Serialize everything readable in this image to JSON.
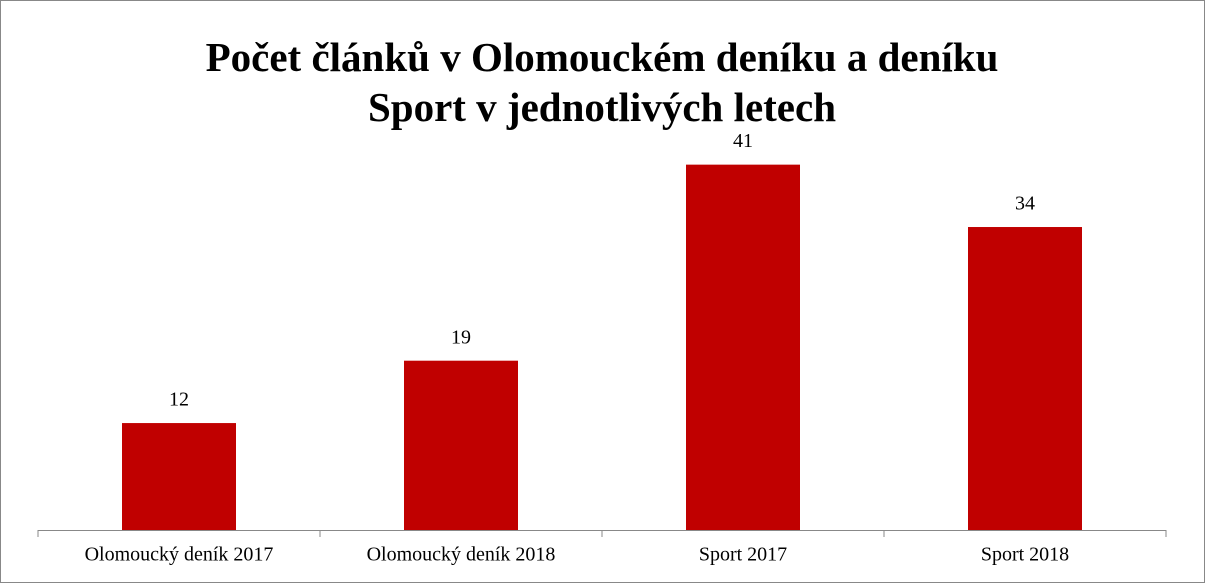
{
  "chart_data": {
    "type": "bar",
    "title": "Počet článků v Olomouckém deníku a deníku Sport v jednotlivých letech",
    "categories": [
      "Olomoucký deník 2017",
      "Olomoucký deník 2018",
      "Sport 2017",
      "Sport 2018"
    ],
    "values": [
      12,
      19,
      41,
      34
    ],
    "color": "#c00000",
    "ylim": [
      0,
      45
    ],
    "grid": false
  }
}
